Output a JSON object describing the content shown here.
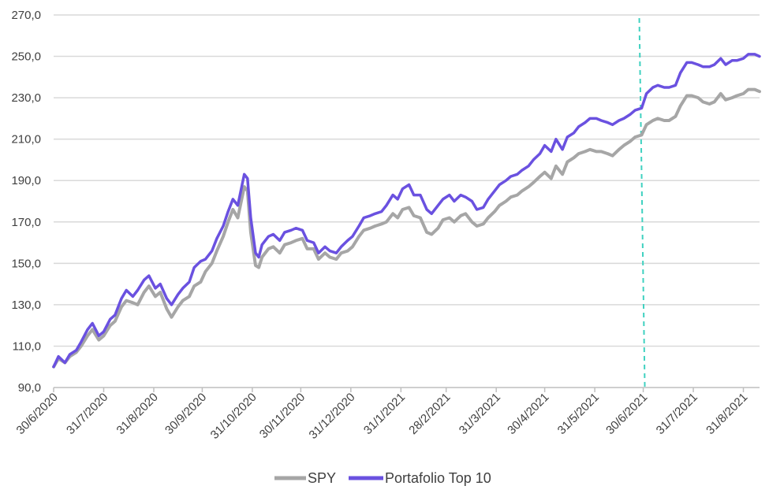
{
  "chart_data": {
    "type": "line",
    "title": "",
    "xlabel": "",
    "ylabel": "",
    "ylim": [
      90,
      270
    ],
    "y_ticks": [
      "270,0",
      "250,0",
      "230,0",
      "210,0",
      "190,0",
      "170,0",
      "150,0",
      "130,0",
      "110,0",
      "90,0"
    ],
    "y_tick_values": [
      270,
      250,
      230,
      210,
      190,
      170,
      150,
      130,
      110,
      90
    ],
    "x_ticks": [
      "30/6/2020",
      "31/7/2020",
      "31/8/2020",
      "30/9/2020",
      "31/10/2020",
      "30/11/2020",
      "31/12/2020",
      "31/1/2021",
      "28/2/2021",
      "31/3/2021",
      "30/4/2021",
      "31/5/2021",
      "30/6/2021",
      "31/7/2021",
      "31/8/2021"
    ],
    "x_tick_dates": [
      "2020-06-30",
      "2020-07-31",
      "2020-08-31",
      "2020-09-30",
      "2020-10-31",
      "2020-11-30",
      "2020-12-31",
      "2021-01-31",
      "2021-02-28",
      "2021-03-31",
      "2021-04-30",
      "2021-05-31",
      "2021-06-30",
      "2021-07-31",
      "2021-08-31"
    ],
    "x_range": [
      "2020-06-30",
      "2021-09-10"
    ],
    "grid": "horizontal",
    "legend_position": "bottom",
    "vertical_marker": {
      "date": "2021-06-30",
      "color": "#3fd1c0",
      "style": "dashed"
    },
    "series": [
      {
        "name": "SPY",
        "color": "#a6a6a6",
        "points": [
          [
            "2020-06-30",
            100
          ],
          [
            "2020-07-03",
            104
          ],
          [
            "2020-07-07",
            102
          ],
          [
            "2020-07-10",
            105
          ],
          [
            "2020-07-14",
            107
          ],
          [
            "2020-07-17",
            110
          ],
          [
            "2020-07-21",
            115
          ],
          [
            "2020-07-24",
            118
          ],
          [
            "2020-07-28",
            113
          ],
          [
            "2020-07-31",
            115
          ],
          [
            "2020-08-04",
            120
          ],
          [
            "2020-08-07",
            122
          ],
          [
            "2020-08-11",
            129
          ],
          [
            "2020-08-14",
            132
          ],
          [
            "2020-08-18",
            131
          ],
          [
            "2020-08-21",
            130
          ],
          [
            "2020-08-25",
            136
          ],
          [
            "2020-08-28",
            139
          ],
          [
            "2020-09-01",
            134
          ],
          [
            "2020-09-04",
            136
          ],
          [
            "2020-09-08",
            128
          ],
          [
            "2020-09-11",
            124
          ],
          [
            "2020-09-15",
            129
          ],
          [
            "2020-09-18",
            132
          ],
          [
            "2020-09-22",
            134
          ],
          [
            "2020-09-25",
            139
          ],
          [
            "2020-09-29",
            141
          ],
          [
            "2020-10-02",
            146
          ],
          [
            "2020-10-06",
            150
          ],
          [
            "2020-10-09",
            156
          ],
          [
            "2020-10-13",
            163
          ],
          [
            "2020-10-16",
            170
          ],
          [
            "2020-10-19",
            176
          ],
          [
            "2020-10-22",
            172
          ],
          [
            "2020-10-26",
            187
          ],
          [
            "2020-10-28",
            185
          ],
          [
            "2020-10-30",
            165
          ],
          [
            "2020-11-02",
            149
          ],
          [
            "2020-11-04",
            148
          ],
          [
            "2020-11-06",
            153
          ],
          [
            "2020-11-10",
            157
          ],
          [
            "2020-11-13",
            158
          ],
          [
            "2020-11-17",
            155
          ],
          [
            "2020-11-20",
            159
          ],
          [
            "2020-11-24",
            160
          ],
          [
            "2020-11-27",
            161
          ],
          [
            "2020-12-01",
            162
          ],
          [
            "2020-12-04",
            157
          ],
          [
            "2020-12-08",
            157
          ],
          [
            "2020-12-11",
            152
          ],
          [
            "2020-12-15",
            155
          ],
          [
            "2020-12-18",
            153
          ],
          [
            "2020-12-22",
            152
          ],
          [
            "2020-12-25",
            155
          ],
          [
            "2020-12-29",
            156
          ],
          [
            "2021-01-01",
            158
          ],
          [
            "2021-01-05",
            163
          ],
          [
            "2021-01-08",
            166
          ],
          [
            "2021-01-12",
            167
          ],
          [
            "2021-01-15",
            168
          ],
          [
            "2021-01-19",
            169
          ],
          [
            "2021-01-22",
            170
          ],
          [
            "2021-01-26",
            174
          ],
          [
            "2021-01-29",
            172
          ],
          [
            "2021-02-01",
            176
          ],
          [
            "2021-02-05",
            177
          ],
          [
            "2021-02-08",
            173
          ],
          [
            "2021-02-12",
            172
          ],
          [
            "2021-02-16",
            165
          ],
          [
            "2021-02-19",
            164
          ],
          [
            "2021-02-23",
            167
          ],
          [
            "2021-02-26",
            171
          ],
          [
            "2021-03-02",
            172
          ],
          [
            "2021-03-05",
            170
          ],
          [
            "2021-03-09",
            173
          ],
          [
            "2021-03-12",
            174
          ],
          [
            "2021-03-16",
            170
          ],
          [
            "2021-03-19",
            168
          ],
          [
            "2021-03-23",
            169
          ],
          [
            "2021-03-26",
            172
          ],
          [
            "2021-03-30",
            175
          ],
          [
            "2021-04-02",
            178
          ],
          [
            "2021-04-06",
            180
          ],
          [
            "2021-04-09",
            182
          ],
          [
            "2021-04-13",
            183
          ],
          [
            "2021-04-16",
            185
          ],
          [
            "2021-04-20",
            187
          ],
          [
            "2021-04-23",
            189
          ],
          [
            "2021-04-27",
            192
          ],
          [
            "2021-04-30",
            194
          ],
          [
            "2021-05-04",
            191
          ],
          [
            "2021-05-07",
            197
          ],
          [
            "2021-05-11",
            193
          ],
          [
            "2021-05-14",
            199
          ],
          [
            "2021-05-18",
            201
          ],
          [
            "2021-05-21",
            203
          ],
          [
            "2021-05-25",
            204
          ],
          [
            "2021-05-28",
            205
          ],
          [
            "2021-06-01",
            204
          ],
          [
            "2021-06-04",
            204
          ],
          [
            "2021-06-08",
            203
          ],
          [
            "2021-06-11",
            202
          ],
          [
            "2021-06-15",
            205
          ],
          [
            "2021-06-18",
            207
          ],
          [
            "2021-06-22",
            209
          ],
          [
            "2021-06-25",
            211
          ],
          [
            "2021-06-29",
            212
          ],
          [
            "2021-07-02",
            217
          ],
          [
            "2021-07-06",
            219
          ],
          [
            "2021-07-09",
            220
          ],
          [
            "2021-07-13",
            219
          ],
          [
            "2021-07-16",
            219
          ],
          [
            "2021-07-20",
            221
          ],
          [
            "2021-07-23",
            226
          ],
          [
            "2021-07-27",
            231
          ],
          [
            "2021-07-30",
            231
          ],
          [
            "2021-08-03",
            230
          ],
          [
            "2021-08-06",
            228
          ],
          [
            "2021-08-10",
            227
          ],
          [
            "2021-08-13",
            228
          ],
          [
            "2021-08-17",
            232
          ],
          [
            "2021-08-20",
            229
          ],
          [
            "2021-08-24",
            230
          ],
          [
            "2021-08-27",
            231
          ],
          [
            "2021-08-31",
            232
          ],
          [
            "2021-09-03",
            234
          ],
          [
            "2021-09-07",
            234
          ],
          [
            "2021-09-10",
            233
          ]
        ]
      },
      {
        "name": "Portafolio Top 10",
        "color": "#6a51e0",
        "points": [
          [
            "2020-06-30",
            100
          ],
          [
            "2020-07-03",
            105
          ],
          [
            "2020-07-07",
            102
          ],
          [
            "2020-07-10",
            106
          ],
          [
            "2020-07-14",
            108
          ],
          [
            "2020-07-17",
            112
          ],
          [
            "2020-07-21",
            118
          ],
          [
            "2020-07-24",
            121
          ],
          [
            "2020-07-28",
            115
          ],
          [
            "2020-07-31",
            117
          ],
          [
            "2020-08-04",
            123
          ],
          [
            "2020-08-07",
            125
          ],
          [
            "2020-08-11",
            133
          ],
          [
            "2020-08-14",
            137
          ],
          [
            "2020-08-18",
            134
          ],
          [
            "2020-08-21",
            137
          ],
          [
            "2020-08-25",
            142
          ],
          [
            "2020-08-28",
            144
          ],
          [
            "2020-09-01",
            138
          ],
          [
            "2020-09-04",
            140
          ],
          [
            "2020-09-08",
            133
          ],
          [
            "2020-09-11",
            130
          ],
          [
            "2020-09-15",
            135
          ],
          [
            "2020-09-18",
            138
          ],
          [
            "2020-09-22",
            141
          ],
          [
            "2020-09-25",
            148
          ],
          [
            "2020-09-29",
            151
          ],
          [
            "2020-10-02",
            152
          ],
          [
            "2020-10-06",
            156
          ],
          [
            "2020-10-09",
            162
          ],
          [
            "2020-10-13",
            168
          ],
          [
            "2020-10-16",
            175
          ],
          [
            "2020-10-19",
            181
          ],
          [
            "2020-10-22",
            178
          ],
          [
            "2020-10-26",
            193
          ],
          [
            "2020-10-28",
            191
          ],
          [
            "2020-10-30",
            172
          ],
          [
            "2020-11-02",
            155
          ],
          [
            "2020-11-04",
            153
          ],
          [
            "2020-11-06",
            159
          ],
          [
            "2020-11-10",
            163
          ],
          [
            "2020-11-13",
            164
          ],
          [
            "2020-11-17",
            161
          ],
          [
            "2020-11-20",
            165
          ],
          [
            "2020-11-24",
            166
          ],
          [
            "2020-11-27",
            167
          ],
          [
            "2020-12-01",
            166
          ],
          [
            "2020-12-04",
            161
          ],
          [
            "2020-12-08",
            160
          ],
          [
            "2020-12-11",
            155
          ],
          [
            "2020-12-15",
            158
          ],
          [
            "2020-12-18",
            156
          ],
          [
            "2020-12-22",
            155
          ],
          [
            "2020-12-25",
            158
          ],
          [
            "2020-12-29",
            161
          ],
          [
            "2021-01-01",
            163
          ],
          [
            "2021-01-05",
            168
          ],
          [
            "2021-01-08",
            172
          ],
          [
            "2021-01-12",
            173
          ],
          [
            "2021-01-15",
            174
          ],
          [
            "2021-01-19",
            175
          ],
          [
            "2021-01-22",
            178
          ],
          [
            "2021-01-26",
            183
          ],
          [
            "2021-01-29",
            181
          ],
          [
            "2021-02-01",
            186
          ],
          [
            "2021-02-05",
            188
          ],
          [
            "2021-02-08",
            183
          ],
          [
            "2021-02-12",
            183
          ],
          [
            "2021-02-16",
            176
          ],
          [
            "2021-02-19",
            174
          ],
          [
            "2021-02-23",
            178
          ],
          [
            "2021-02-26",
            181
          ],
          [
            "2021-03-02",
            183
          ],
          [
            "2021-03-05",
            180
          ],
          [
            "2021-03-09",
            183
          ],
          [
            "2021-03-12",
            182
          ],
          [
            "2021-03-16",
            180
          ],
          [
            "2021-03-19",
            176
          ],
          [
            "2021-03-23",
            177
          ],
          [
            "2021-03-26",
            181
          ],
          [
            "2021-03-30",
            185
          ],
          [
            "2021-04-02",
            188
          ],
          [
            "2021-04-06",
            190
          ],
          [
            "2021-04-09",
            192
          ],
          [
            "2021-04-13",
            193
          ],
          [
            "2021-04-16",
            195
          ],
          [
            "2021-04-20",
            197
          ],
          [
            "2021-04-23",
            200
          ],
          [
            "2021-04-27",
            203
          ],
          [
            "2021-04-30",
            207
          ],
          [
            "2021-05-04",
            204
          ],
          [
            "2021-05-07",
            210
          ],
          [
            "2021-05-11",
            205
          ],
          [
            "2021-05-14",
            211
          ],
          [
            "2021-05-18",
            213
          ],
          [
            "2021-05-21",
            216
          ],
          [
            "2021-05-25",
            218
          ],
          [
            "2021-05-28",
            220
          ],
          [
            "2021-06-01",
            220
          ],
          [
            "2021-06-04",
            219
          ],
          [
            "2021-06-08",
            218
          ],
          [
            "2021-06-11",
            217
          ],
          [
            "2021-06-15",
            219
          ],
          [
            "2021-06-18",
            220
          ],
          [
            "2021-06-22",
            222
          ],
          [
            "2021-06-25",
            224
          ],
          [
            "2021-06-29",
            225
          ],
          [
            "2021-07-02",
            232
          ],
          [
            "2021-07-06",
            235
          ],
          [
            "2021-07-09",
            236
          ],
          [
            "2021-07-13",
            235
          ],
          [
            "2021-07-16",
            235
          ],
          [
            "2021-07-20",
            236
          ],
          [
            "2021-07-23",
            242
          ],
          [
            "2021-07-27",
            247
          ],
          [
            "2021-07-30",
            247
          ],
          [
            "2021-08-03",
            246
          ],
          [
            "2021-08-06",
            245
          ],
          [
            "2021-08-10",
            245
          ],
          [
            "2021-08-13",
            246
          ],
          [
            "2021-08-17",
            249
          ],
          [
            "2021-08-20",
            246
          ],
          [
            "2021-08-24",
            248
          ],
          [
            "2021-08-27",
            248
          ],
          [
            "2021-08-31",
            249
          ],
          [
            "2021-09-03",
            251
          ],
          [
            "2021-09-07",
            251
          ],
          [
            "2021-09-10",
            250
          ]
        ]
      }
    ]
  }
}
